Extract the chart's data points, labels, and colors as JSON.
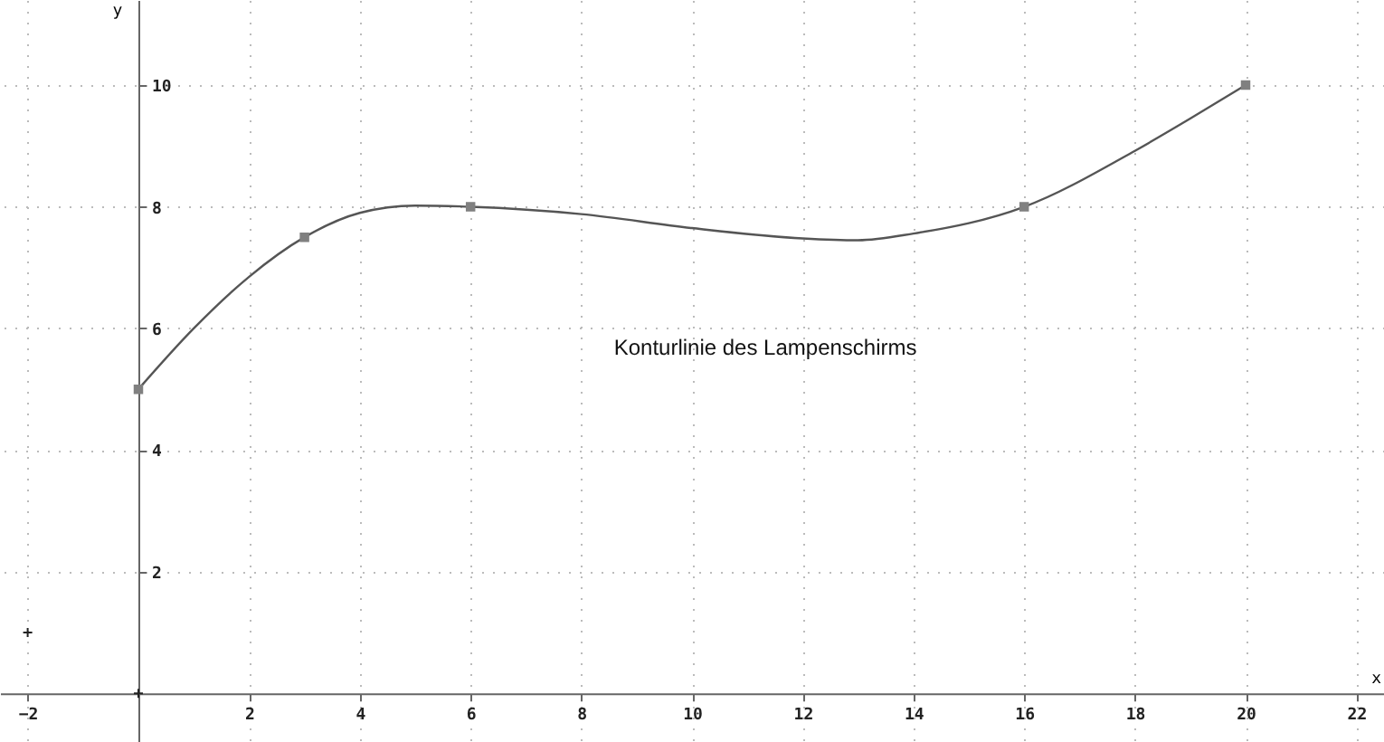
{
  "chart_data": {
    "type": "line",
    "xlabel": "x",
    "ylabel": "y",
    "annotations": [
      "Konturlinie des Lampenschirms"
    ],
    "xlim": [
      -2.5,
      22.5
    ],
    "ylim": [
      -0.8,
      11.4
    ],
    "xticks": [
      -2,
      2,
      4,
      6,
      8,
      10,
      12,
      14,
      16,
      18,
      20,
      22
    ],
    "yticks": [
      2,
      4,
      6,
      8,
      10
    ],
    "grid": true,
    "series": [
      {
        "color": "#555555",
        "marker": "none",
        "x": [
          0,
          1,
          2,
          3,
          4,
          5,
          6,
          8,
          10,
          12,
          13,
          14,
          16,
          18,
          19,
          20
        ],
        "values": [
          5,
          6.0,
          6.85,
          7.5,
          7.9,
          8.02,
          8,
          7.88,
          7.65,
          7.48,
          7.45,
          7.56,
          8,
          8.92,
          9.45,
          10
        ]
      },
      {
        "type": "scatter",
        "color": "#808080",
        "marker": "square",
        "x": [
          0,
          3,
          6,
          16,
          20
        ],
        "values": [
          5,
          7.5,
          8,
          8,
          10
        ]
      },
      {
        "type": "scatter",
        "color": "#222222",
        "marker": "cross",
        "x": [
          -2,
          0
        ],
        "values": [
          1,
          0
        ]
      }
    ]
  }
}
